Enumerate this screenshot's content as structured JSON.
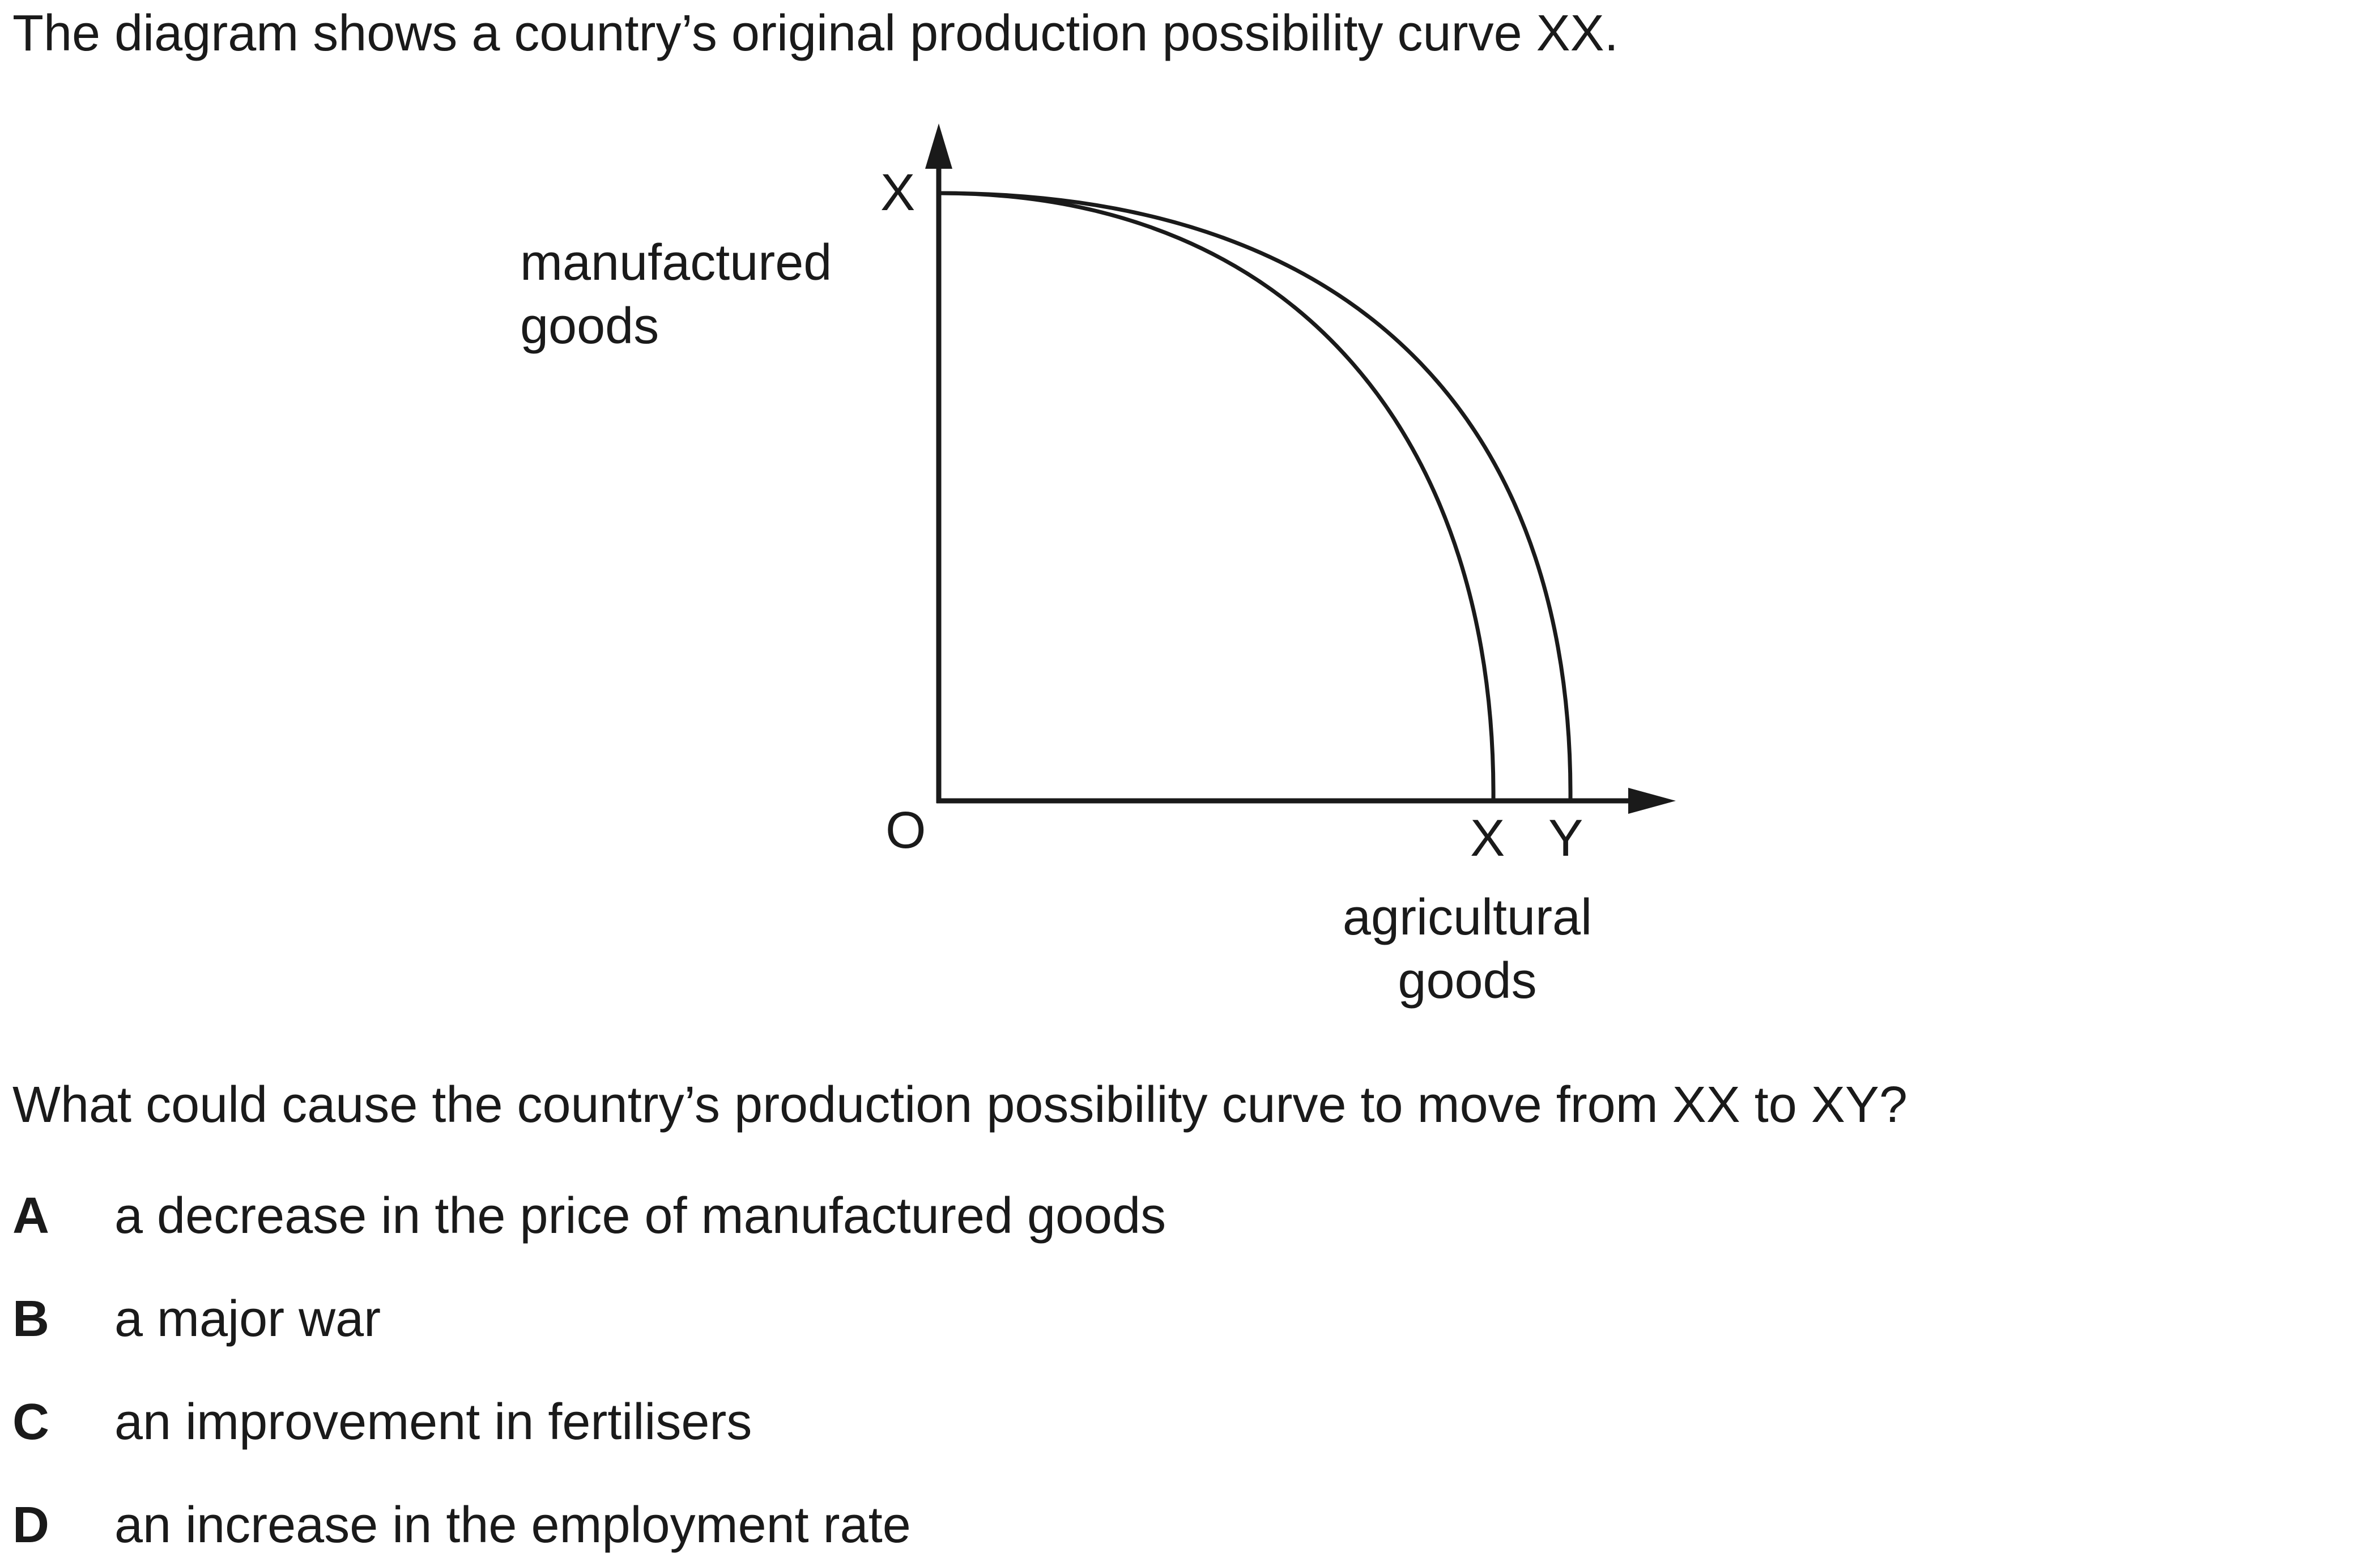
{
  "intro_text": "The diagram shows a country’s original production possibility curve XX.",
  "diagram": {
    "y_axis_label": "manufactured\ngoods",
    "x_axis_label": "agricultural\ngoods",
    "point_labels": {
      "y_axis_top": "X",
      "origin": "O",
      "x_axis_original": "X",
      "x_axis_new": "Y"
    },
    "curves": [
      {
        "name": "XX",
        "description_role": "original production possibility curve"
      },
      {
        "name": "XY",
        "description_role": "new production possibility curve"
      }
    ]
  },
  "question": "What could cause the country’s production possibility curve to move from XX to XY?",
  "options": [
    {
      "letter": "A",
      "text": "a decrease in the price of manufactured goods"
    },
    {
      "letter": "B",
      "text": "a major war"
    },
    {
      "letter": "C",
      "text": "an improvement in fertilisers"
    },
    {
      "letter": "D",
      "text": "an increase in the employment rate"
    }
  ]
}
